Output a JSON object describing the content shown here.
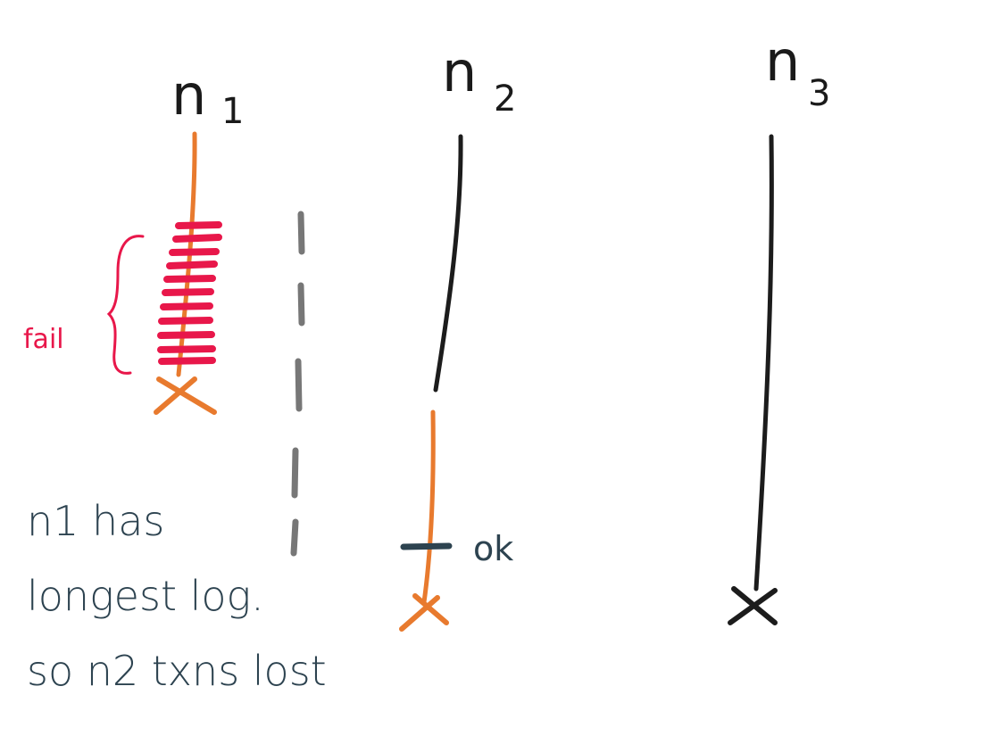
{
  "nodes": [
    {
      "name": "n",
      "subscript": "1"
    },
    {
      "name": "n",
      "subscript": "2"
    },
    {
      "name": "n",
      "subscript": "3"
    }
  ],
  "annotations": {
    "fail": "fail",
    "ok": "ok"
  },
  "note": {
    "lines": [
      "n1 has",
      "longest log.",
      "so n2 txns lost"
    ]
  },
  "colors": {
    "timeline_black": "#1c1c1c",
    "timeline_orange": "#e87a2e",
    "failed_writes_red": "#e8174a",
    "partition_gray": "#777777",
    "note_text": "#2d4350",
    "ok_tick": "#2d4350"
  }
}
